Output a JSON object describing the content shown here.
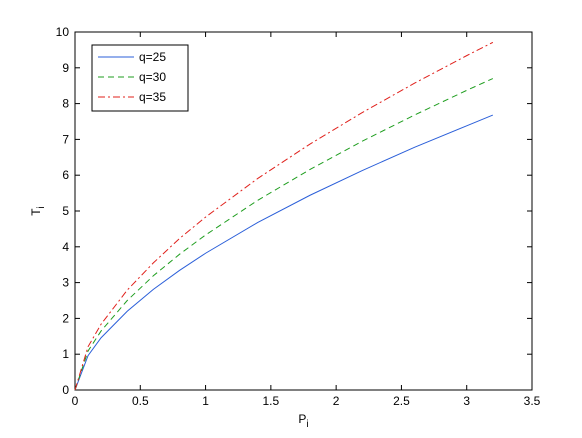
{
  "chart_data": {
    "type": "line",
    "xlabel": {
      "base": "P",
      "subscript": "i"
    },
    "ylabel": {
      "base": "T",
      "subscript": "i"
    },
    "x": [
      0,
      0.1,
      0.2,
      0.4,
      0.6,
      0.8,
      1.0,
      1.4,
      1.8,
      2.2,
      2.6,
      3.0,
      3.2
    ],
    "series": [
      {
        "name": "q=25",
        "color": "#2b5fd9",
        "dash": "solid",
        "values": [
          0,
          0.96,
          1.46,
          2.2,
          2.81,
          3.34,
          3.82,
          4.68,
          5.44,
          6.13,
          6.78,
          7.38,
          7.68
        ]
      },
      {
        "name": "q=30",
        "color": "#1f9e1f",
        "dash": "dashed",
        "values": [
          0,
          1.09,
          1.65,
          2.5,
          3.19,
          3.79,
          4.33,
          5.3,
          6.16,
          6.95,
          7.68,
          8.37,
          8.7
        ]
      },
      {
        "name": "q=35",
        "color": "#e0201b",
        "dash": "dashdot",
        "values": [
          0,
          1.21,
          1.84,
          2.79,
          3.55,
          4.23,
          4.83,
          5.91,
          6.87,
          7.75,
          8.57,
          9.34,
          9.71
        ]
      }
    ],
    "xlim": [
      0,
      3.5
    ],
    "xticks": [
      0,
      0.5,
      1,
      1.5,
      2,
      2.5,
      3,
      3.5
    ],
    "ylim": [
      0,
      10
    ],
    "yticks": [
      0,
      1,
      2,
      3,
      4,
      5,
      6,
      7,
      8,
      9,
      10
    ],
    "grid": false,
    "legend": "upper-left"
  }
}
